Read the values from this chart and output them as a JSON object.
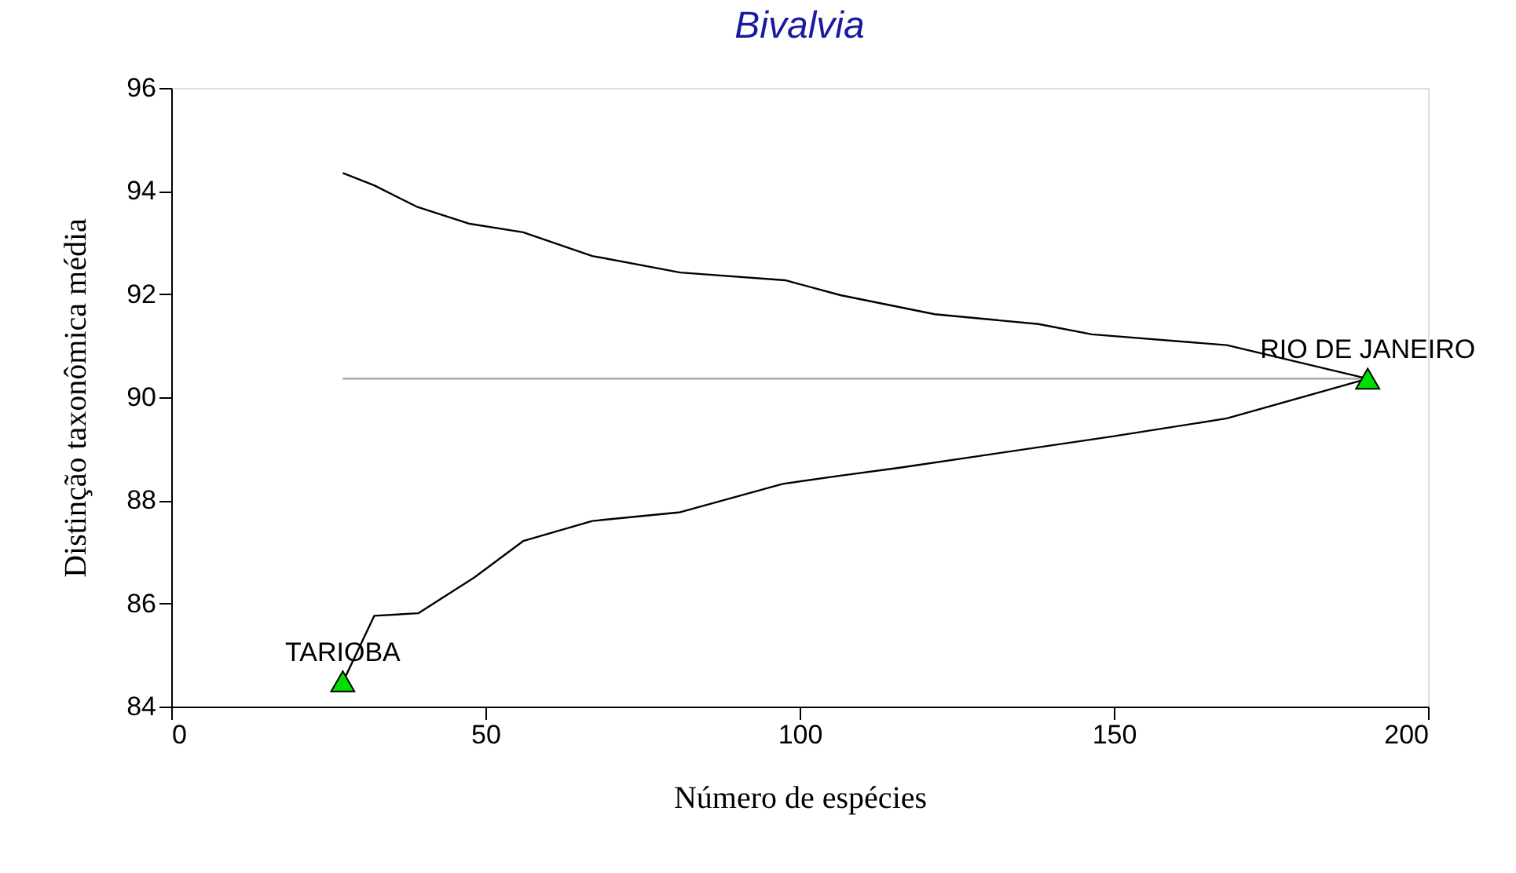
{
  "chart_data": {
    "type": "line",
    "title": "Bivalvia",
    "xlabel": "Número de espécies",
    "ylabel": "Distinção taxonômica média",
    "xlim": [
      0,
      200
    ],
    "xticks": [
      0,
      50,
      100,
      150,
      200
    ],
    "ylim": [
      84,
      96
    ],
    "yticks": [
      84,
      86,
      88,
      90,
      92,
      94,
      96
    ],
    "grid": false,
    "legend": false,
    "series": [
      {
        "color": "#000000",
        "x": [
          27.3,
          32.3,
          39,
          47.3,
          56,
          67,
          81,
          97.7,
          106.5,
          121.5,
          138,
          146.5,
          168,
          190.4
        ],
        "values": [
          94.35,
          94.11,
          93.7,
          93.37,
          93.2,
          92.74,
          92.42,
          92.27,
          91.98,
          91.61,
          91.42,
          91.22,
          91.01,
          90.36
        ]
      },
      {
        "color": "#000000",
        "x": [
          27.3,
          32.3,
          39.3,
          48.2,
          56,
          67,
          81,
          97.3,
          106.5,
          115.7,
          149.8,
          168,
          190.4
        ],
        "values": [
          84.47,
          85.76,
          85.81,
          86.5,
          87.21,
          87.6,
          87.77,
          88.32,
          88.48,
          88.63,
          89.24,
          89.59,
          90.36
        ]
      },
      {
        "color": "#a0a0a0",
        "x": [
          27.3,
          190.4
        ],
        "values": [
          90.36,
          90.36
        ]
      },
      {
        "type": "scatter",
        "color": "#00e000",
        "marker": "triangle",
        "x": [
          27.3,
          190.4
        ],
        "values": [
          84.49,
          90.36
        ]
      }
    ],
    "annotations": [
      {
        "text": "TARIOBA",
        "x": 27.3,
        "y": 84.49
      },
      {
        "text": "RIO DE JANEIRO",
        "x": 190.4,
        "y": 90.36
      }
    ]
  }
}
